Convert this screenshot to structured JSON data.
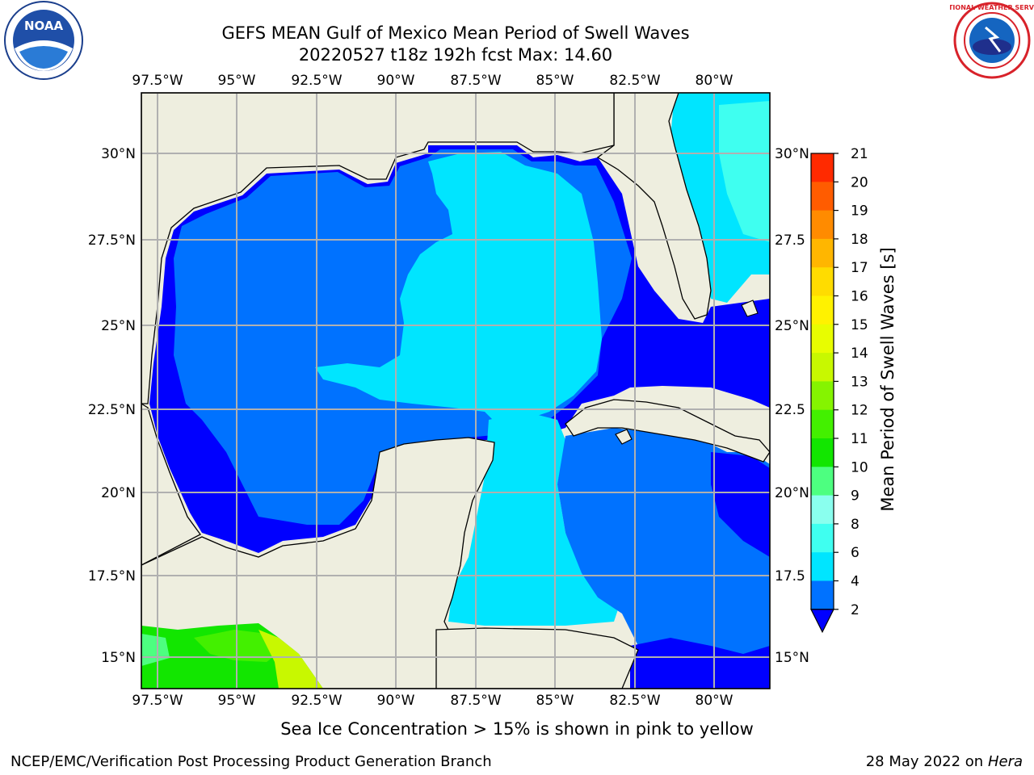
{
  "header": {
    "title_line1": "GEFS MEAN Gulf of Mexico Mean Period of Swell Waves",
    "title_line2": "20220527 t18z 192h fcst   Max: 14.60"
  },
  "map": {
    "lon_labels": [
      "97.5°W",
      "95°W",
      "92.5°W",
      "90°W",
      "87.5°W",
      "85°W",
      "82.5°W",
      "80°W"
    ],
    "lat_labels_left": [
      "30°N",
      "27.5°N",
      "25°N",
      "22.5°N",
      "20°N",
      "17.5°N",
      "15°N"
    ],
    "lat_labels_right": [
      "30°N",
      "27.5",
      "25°N",
      "22.5",
      "20°N",
      "17.5",
      "15°N"
    ],
    "land_color": "#eeeedf",
    "grid_color": "#b0b0b0"
  },
  "colorbar": {
    "label": "Mean Period of Swell Waves [s]",
    "ticks": [
      "2",
      "4",
      "6",
      "8",
      "9",
      "10",
      "11",
      "12",
      "13",
      "14",
      "15",
      "16",
      "17",
      "18",
      "19",
      "20",
      "21"
    ],
    "colors": [
      "#0072ff",
      "#00e5ff",
      "#3ffff0",
      "#8affee",
      "#4dff80",
      "#12e600",
      "#43f000",
      "#85f400",
      "#c8f800",
      "#e8fd00",
      "#fff200",
      "#ffdc00",
      "#ffb600",
      "#ff8b00",
      "#ff5c00",
      "#ff2a00"
    ],
    "under_color": "#0000ff"
  },
  "footer": {
    "ice_note": "Sea Ice Concentration > 15% is shown in pink to yellow",
    "credit": "NCEP/EMC/Verification Post Processing Product Generation Branch",
    "date": "28 May 2022 on",
    "machine": "Hera"
  },
  "logos": {
    "noaa_text": "NOAA",
    "nws_text": "NATIONAL WEATHER SERVICE"
  }
}
